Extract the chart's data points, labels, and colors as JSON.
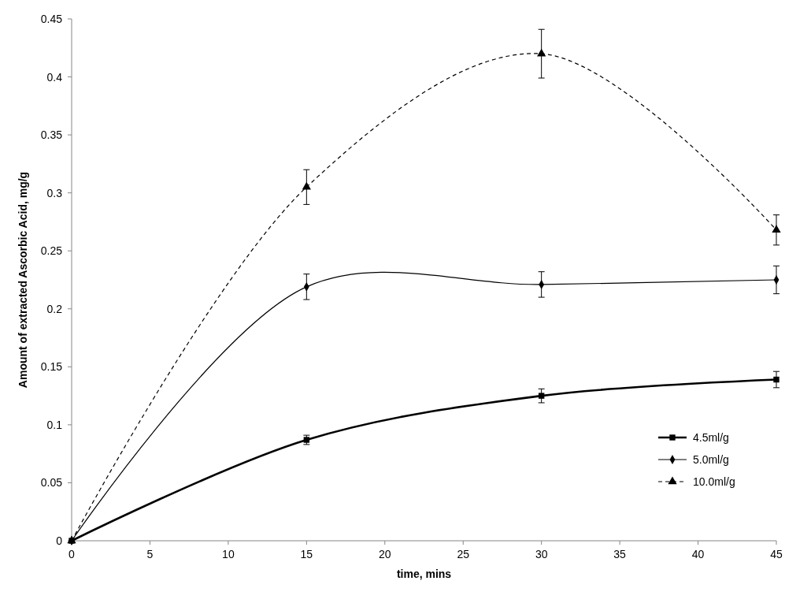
{
  "chart_data": {
    "type": "line",
    "xlabel": "time, mins",
    "ylabel": "Amount of extracted Ascorbic Acid, mg/g",
    "x": [
      0,
      15,
      30,
      45
    ],
    "series": [
      {
        "name": "4.5ml/g",
        "color": "#000000",
        "values": [
          0,
          0.087,
          0.125,
          0.139
        ],
        "errors": [
          null,
          0.004,
          0.006,
          0.007
        ],
        "marker": "square",
        "line_style": "solid"
      },
      {
        "name": "5.0ml/g",
        "color": "#000000",
        "values": [
          0,
          0.219,
          0.221,
          0.225
        ],
        "errors": [
          null,
          0.011,
          0.011,
          0.012
        ],
        "marker": "diamond",
        "line_style": "solid"
      },
      {
        "name": "10.0ml/g",
        "color": "#000000",
        "values": [
          0,
          0.305,
          0.42,
          0.268
        ],
        "errors": [
          null,
          0.015,
          0.021,
          0.013
        ],
        "marker": "triangle",
        "line_style": "dashed"
      }
    ],
    "xlim": [
      0,
      45
    ],
    "xticks": [
      0,
      5,
      10,
      15,
      20,
      25,
      30,
      35,
      40,
      45
    ],
    "ylim": [
      0,
      0.45
    ],
    "yticks": [
      0,
      0.05,
      0.1,
      0.15,
      0.2,
      0.25,
      0.3,
      0.35,
      0.4,
      0.45
    ],
    "grid": false,
    "legend": "right"
  }
}
